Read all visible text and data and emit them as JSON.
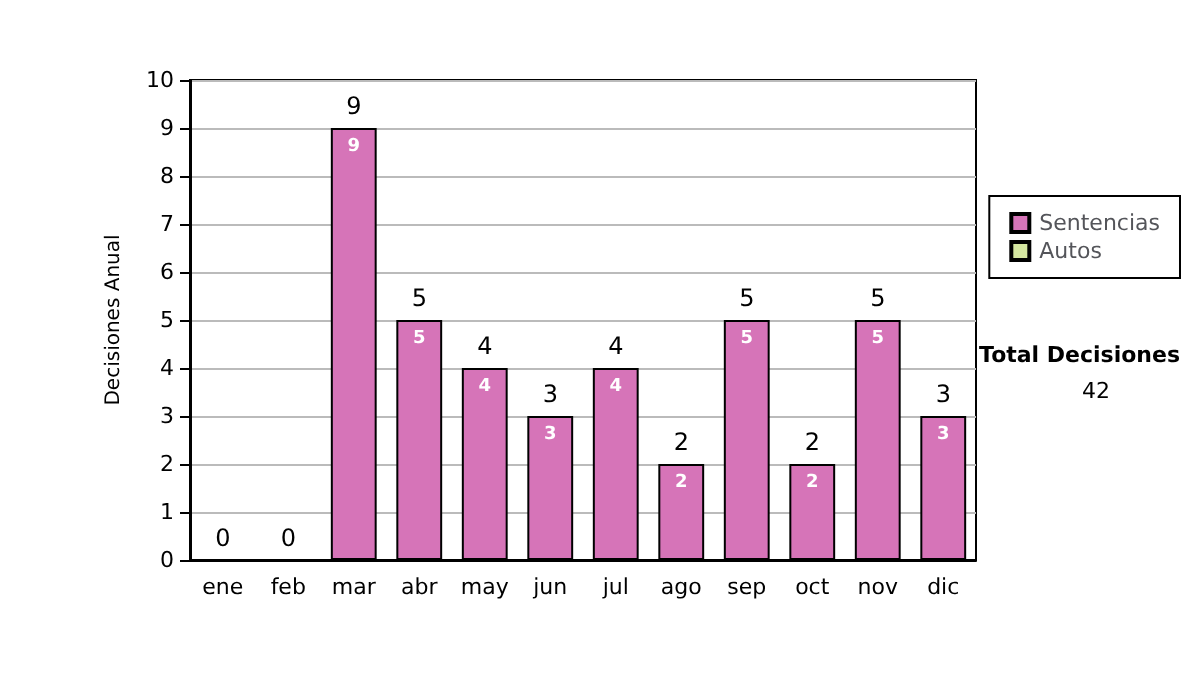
{
  "chart_data": {
    "type": "bar",
    "stacked": true,
    "ylabel": "Decisiones Anual",
    "categories": [
      "ene",
      "feb",
      "mar",
      "abr",
      "may",
      "jun",
      "jul",
      "ago",
      "sep",
      "oct",
      "nov",
      "dic"
    ],
    "series": [
      {
        "name": "Sentencias",
        "color": "#d674b8",
        "values": [
          0,
          0,
          9,
          5,
          4,
          3,
          4,
          2,
          5,
          2,
          5,
          3
        ],
        "value_labels": [
          null,
          null,
          "9",
          "5",
          "4",
          "3",
          "4",
          "2",
          "5",
          "2",
          "5",
          "3"
        ]
      },
      {
        "name": "Autos",
        "color": "#d4e6a0",
        "values": [
          0,
          0,
          0,
          0,
          0,
          0,
          0,
          0,
          0,
          0,
          0,
          0
        ]
      }
    ],
    "totals": [
      "0",
      "0",
      "9",
      "5",
      "4",
      "3",
      "4",
      "2",
      "5",
      "2",
      "5",
      "3"
    ],
    "ylim": [
      0,
      10
    ],
    "yticks": [
      0,
      1,
      2,
      3,
      4,
      5,
      6,
      7,
      8,
      9,
      10
    ],
    "grid": "y",
    "legend": "right",
    "annotations": [
      "Total Decisiones",
      "42"
    ]
  }
}
